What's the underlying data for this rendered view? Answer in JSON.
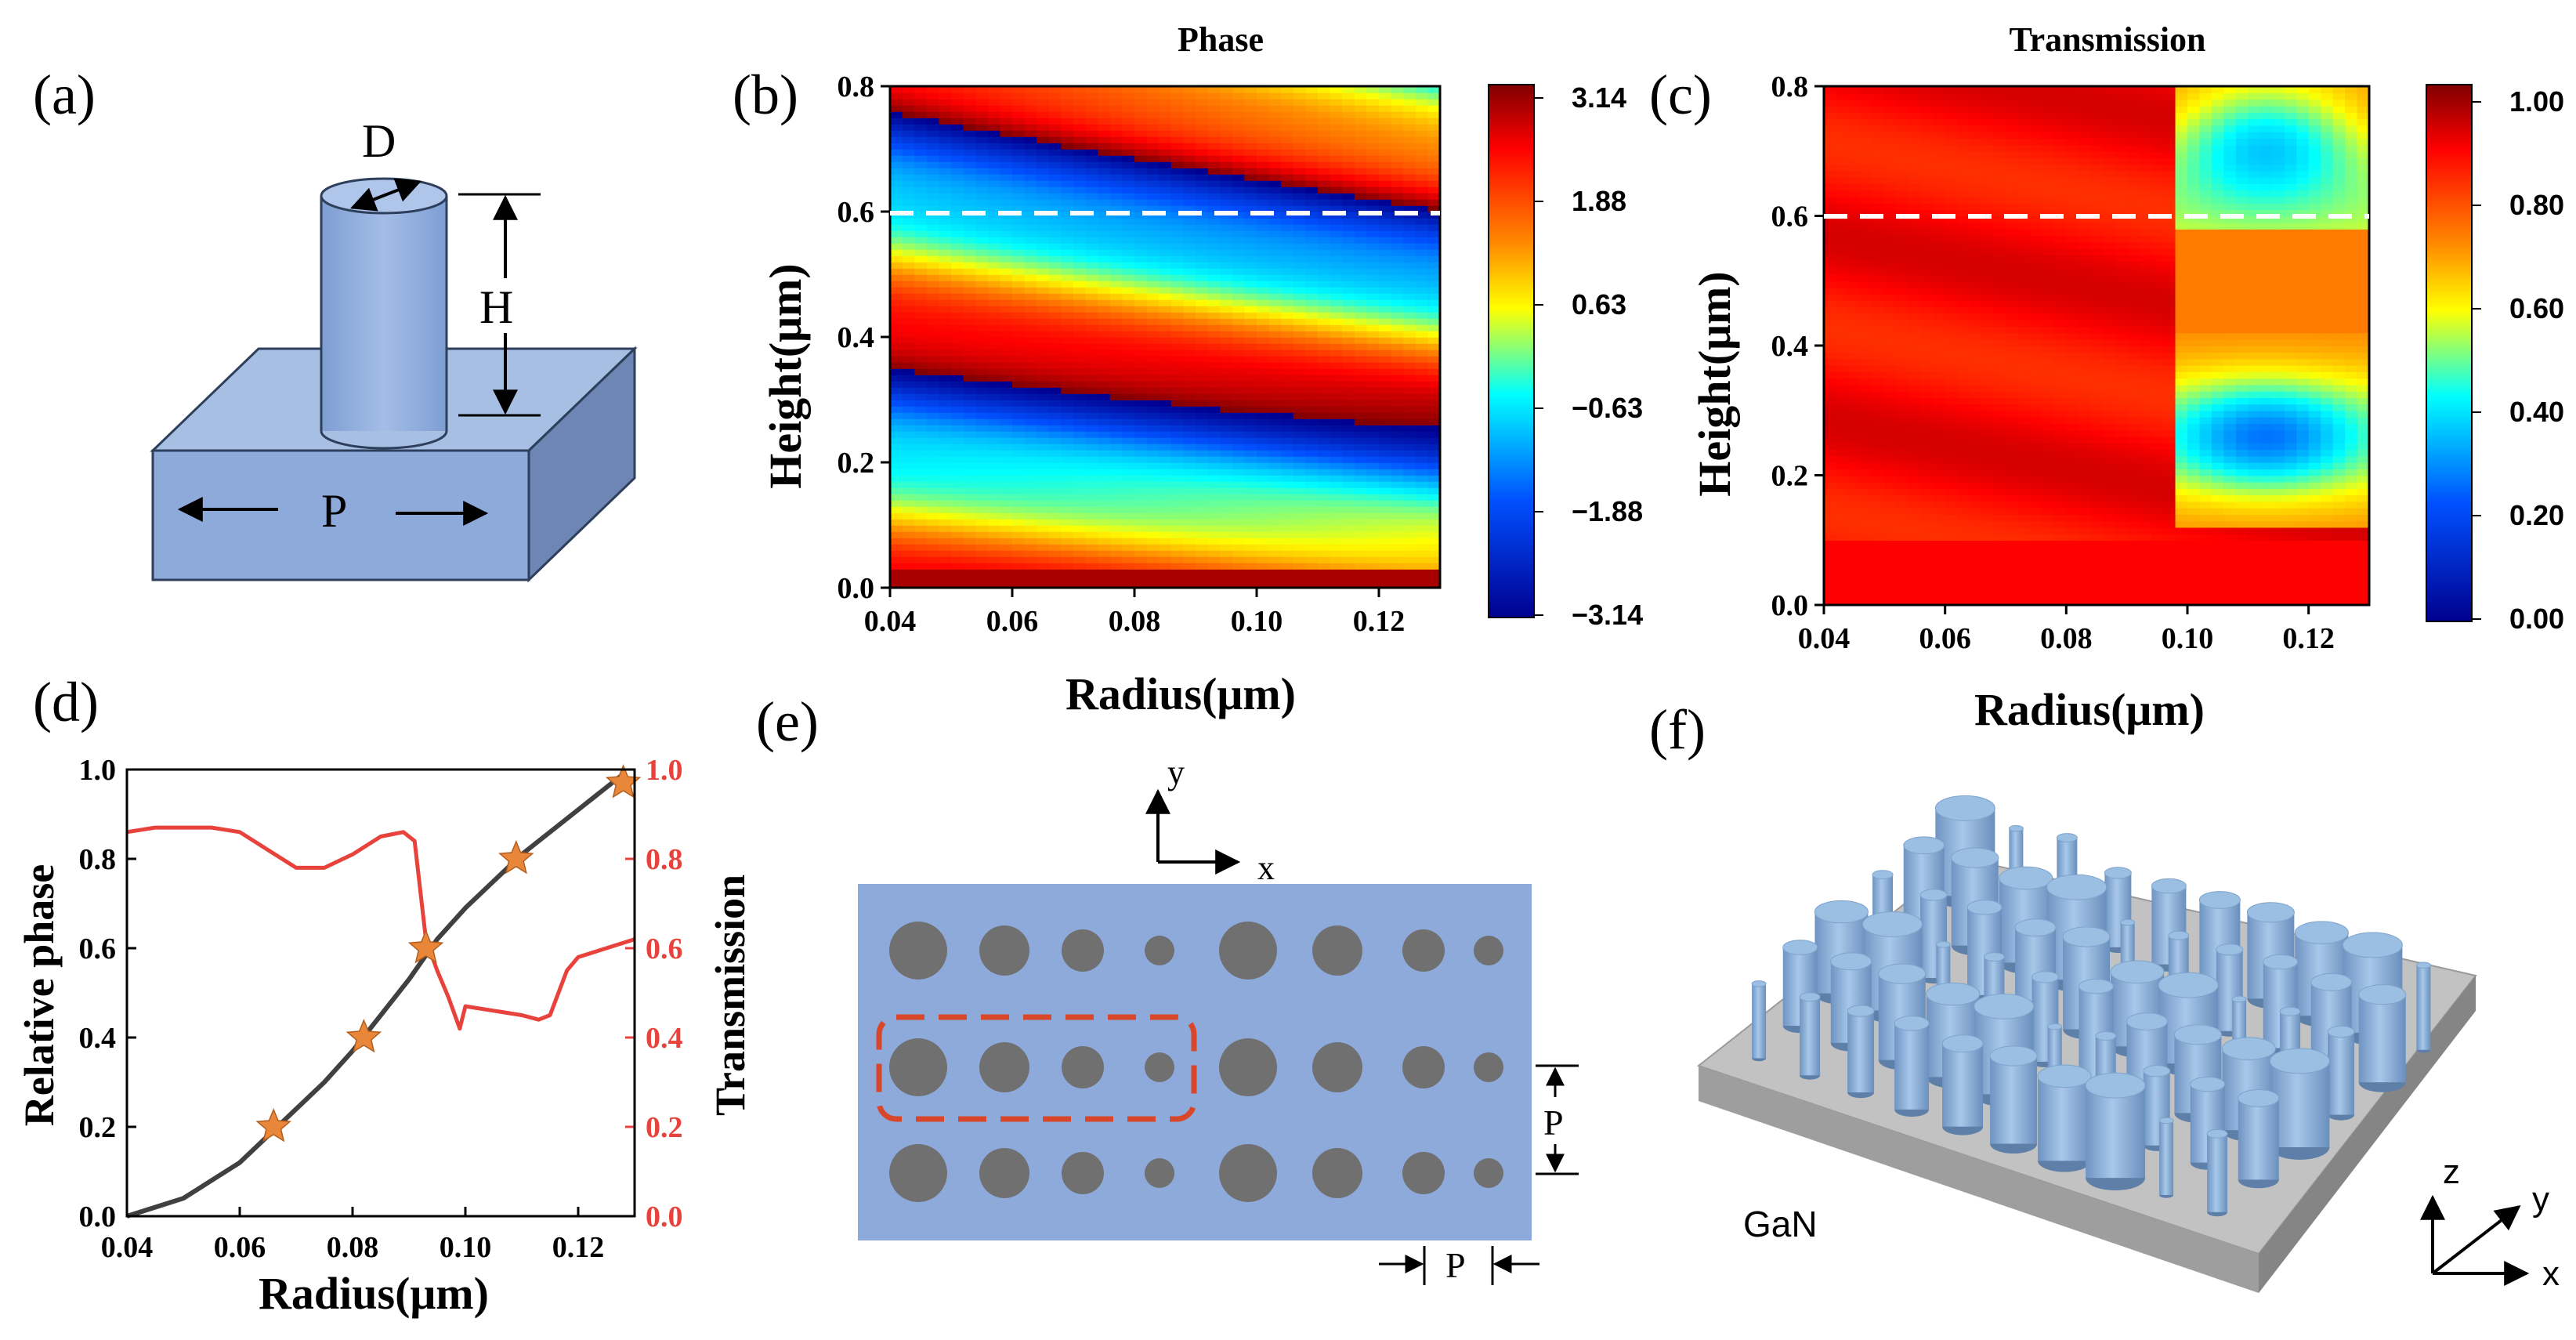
{
  "panels": {
    "a": {
      "label": "(a)",
      "dim_d": "D",
      "dim_h": "H",
      "dim_p": "P"
    },
    "b": {
      "label": "(b)"
    },
    "c": {
      "label": "(c)"
    },
    "d": {
      "label": "(d)"
    },
    "e": {
      "label": "(e)",
      "axis_y": "y",
      "axis_x": "x",
      "period_label": "P"
    },
    "f": {
      "label": "(f)",
      "substrate_label": "GaN",
      "axis_z": "z",
      "axis_y": "y",
      "axis_x": "x"
    }
  },
  "colors": {
    "cylinder": "#8EAADB",
    "substrate": "#9DB3DF",
    "pillar_hole": "#707070",
    "highlight_box": "#D9472B",
    "phase_line": "#404040",
    "transmission_line": "#E8423C",
    "star": "#E8873A",
    "gan_top": "#BBBBBB",
    "pillar3d": "#9BBFE2"
  },
  "chart_data": [
    {
      "id": "b",
      "type": "heatmap",
      "title": "Phase",
      "xlabel": "Radius(μm)",
      "ylabel": "Height(μm)",
      "xlim": [
        0.04,
        0.13
      ],
      "ylim": [
        0.0,
        0.8
      ],
      "xticks": [
        "0.04",
        "0.06",
        "0.08",
        "0.10",
        "0.12"
      ],
      "yticks": [
        "0.0",
        "0.2",
        "0.4",
        "0.6",
        "0.8"
      ],
      "colorbar_range": [
        -3.14,
        3.14
      ],
      "colorbar_ticks": [
        "3.14",
        "1.88",
        "0.63",
        "−0.63",
        "−1.88",
        "−3.14"
      ],
      "dashed_line_height": 0.61
    },
    {
      "id": "c",
      "type": "heatmap",
      "title": "Transmission",
      "xlabel": "Radius(μm)",
      "ylabel": "Height(μm)",
      "xlim": [
        0.04,
        0.13
      ],
      "ylim": [
        0.0,
        0.8
      ],
      "xticks": [
        "0.04",
        "0.06",
        "0.08",
        "0.10",
        "0.12"
      ],
      "yticks": [
        "0.0",
        "0.2",
        "0.4",
        "0.6",
        "0.8"
      ],
      "colorbar_range": [
        0.0,
        1.0
      ],
      "colorbar_ticks": [
        "1.00",
        "0.80",
        "0.60",
        "0.40",
        "0.20",
        "0.00"
      ],
      "dashed_line_height": 0.61
    },
    {
      "id": "d",
      "type": "line",
      "xlabel": "Radius(μm)",
      "ylabel_left": "Relative phase",
      "ylabel_right": "Transmission",
      "xlim": [
        0.04,
        0.13
      ],
      "ylim": [
        0.0,
        1.0
      ],
      "xticks": [
        "0.04",
        "0.06",
        "0.08",
        "0.10",
        "0.12"
      ],
      "yticks_left": [
        "0.0",
        "0.2",
        "0.4",
        "0.6",
        "0.8",
        "1.0"
      ],
      "yticks_right": [
        "0.0",
        "0.2",
        "0.4",
        "0.6",
        "0.8",
        "1.0"
      ],
      "series": [
        {
          "name": "Relative phase",
          "x": [
            0.04,
            0.045,
            0.05,
            0.055,
            0.06,
            0.065,
            0.07,
            0.075,
            0.08,
            0.085,
            0.09,
            0.095,
            0.1,
            0.105,
            0.11,
            0.115,
            0.12,
            0.125,
            0.128
          ],
          "y": [
            0.0,
            0.02,
            0.04,
            0.08,
            0.12,
            0.18,
            0.24,
            0.3,
            0.37,
            0.45,
            0.53,
            0.62,
            0.69,
            0.75,
            0.81,
            0.86,
            0.91,
            0.96,
            0.99
          ]
        },
        {
          "name": "Transmission",
          "x": [
            0.04,
            0.045,
            0.05,
            0.055,
            0.06,
            0.065,
            0.07,
            0.075,
            0.08,
            0.085,
            0.089,
            0.091,
            0.093,
            0.095,
            0.097,
            0.099,
            0.1,
            0.105,
            0.11,
            0.113,
            0.115,
            0.118,
            0.12,
            0.125,
            0.13
          ],
          "y": [
            0.86,
            0.87,
            0.87,
            0.87,
            0.86,
            0.82,
            0.78,
            0.78,
            0.81,
            0.85,
            0.86,
            0.84,
            0.62,
            0.55,
            0.49,
            0.42,
            0.47,
            0.46,
            0.45,
            0.44,
            0.45,
            0.55,
            0.58,
            0.6,
            0.62
          ]
        }
      ],
      "markers": {
        "x": [
          0.066,
          0.082,
          0.093,
          0.109,
          0.128
        ],
        "y": [
          0.2,
          0.4,
          0.6,
          0.8,
          0.97
        ]
      }
    }
  ]
}
